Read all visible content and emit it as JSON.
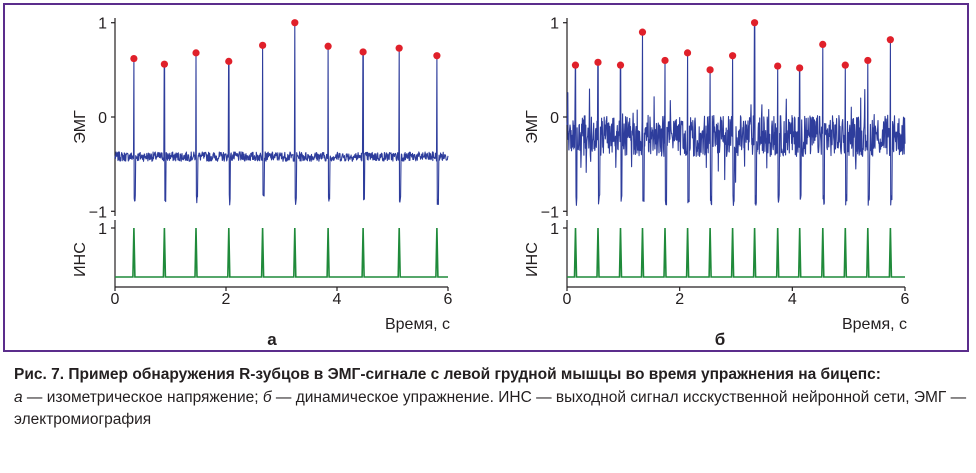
{
  "caption": {
    "title": "Рис. 7. Пример обнаружения R-зубцов в ЭМГ-сигнале с левой грудной мышцы во время упражнения на бицепс:",
    "part_a_letter": "а",
    "part_a_text": " — изометрическое напряжение; ",
    "part_b_letter": "б",
    "part_b_text": " — динамическое упражнение. ИНС — выходной сигнал исскуственной нейронной сети, ЭМГ — электромиография"
  },
  "colors": {
    "frame": "#5b2d8c",
    "emg_signal": "#2e3d9c",
    "r_peak": "#e0202a",
    "ann_signal": "#1f8a3a"
  },
  "chart_data": [
    {
      "type": "line",
      "panel_label": "а",
      "xlabel": "Время, с",
      "xlim": [
        0,
        6
      ],
      "x_ticks": [
        "0",
        "2",
        "4",
        "6"
      ],
      "top": {
        "ylabel": "ЭМГ",
        "ylim": [
          -1.05,
          1.05
        ],
        "y_ticks": [
          "1",
          "0",
          "−1"
        ],
        "baseline": -0.42,
        "noise_amp": 0.05,
        "peaks": [
          {
            "t": 0.34,
            "v": 0.62
          },
          {
            "t": 0.89,
            "v": 0.56
          },
          {
            "t": 1.46,
            "v": 0.68
          },
          {
            "t": 2.05,
            "v": 0.59
          },
          {
            "t": 2.66,
            "v": 0.76
          },
          {
            "t": 3.24,
            "v": 1.0
          },
          {
            "t": 3.84,
            "v": 0.75
          },
          {
            "t": 4.47,
            "v": 0.69
          },
          {
            "t": 5.12,
            "v": 0.73
          },
          {
            "t": 5.8,
            "v": 0.65
          }
        ]
      },
      "bottom": {
        "ylabel": "ИНС",
        "ylim": [
          0,
          1
        ],
        "y_ticks": [
          "1"
        ],
        "pulse_times": [
          0.34,
          0.89,
          1.46,
          2.05,
          2.66,
          3.24,
          3.84,
          4.47,
          5.12,
          5.8
        ]
      }
    },
    {
      "type": "line",
      "panel_label": "б",
      "xlabel": "Время, с",
      "xlim": [
        0,
        6
      ],
      "x_ticks": [
        "0",
        "2",
        "4",
        "6"
      ],
      "top": {
        "ylabel": "ЭМГ",
        "ylim": [
          -1.05,
          1.05
        ],
        "y_ticks": [
          "1",
          "0",
          "−1"
        ],
        "baseline": -0.2,
        "noise_amp": 0.22,
        "peaks": [
          {
            "t": 0.15,
            "v": 0.55
          },
          {
            "t": 0.55,
            "v": 0.58
          },
          {
            "t": 0.95,
            "v": 0.55
          },
          {
            "t": 1.34,
            "v": 0.9
          },
          {
            "t": 1.74,
            "v": 0.6
          },
          {
            "t": 2.14,
            "v": 0.68
          },
          {
            "t": 2.54,
            "v": 0.5
          },
          {
            "t": 2.94,
            "v": 0.65
          },
          {
            "t": 3.33,
            "v": 1.0
          },
          {
            "t": 3.74,
            "v": 0.54
          },
          {
            "t": 4.13,
            "v": 0.52
          },
          {
            "t": 4.54,
            "v": 0.77
          },
          {
            "t": 4.94,
            "v": 0.55
          },
          {
            "t": 5.34,
            "v": 0.6
          },
          {
            "t": 5.74,
            "v": 0.82
          }
        ]
      },
      "bottom": {
        "ylabel": "ИНС",
        "ylim": [
          0,
          1
        ],
        "y_ticks": [
          "1"
        ],
        "pulse_times": [
          0.15,
          0.55,
          0.95,
          1.34,
          1.74,
          2.14,
          2.54,
          2.94,
          3.33,
          3.74,
          4.13,
          4.54,
          4.94,
          5.34,
          5.74
        ]
      }
    }
  ]
}
